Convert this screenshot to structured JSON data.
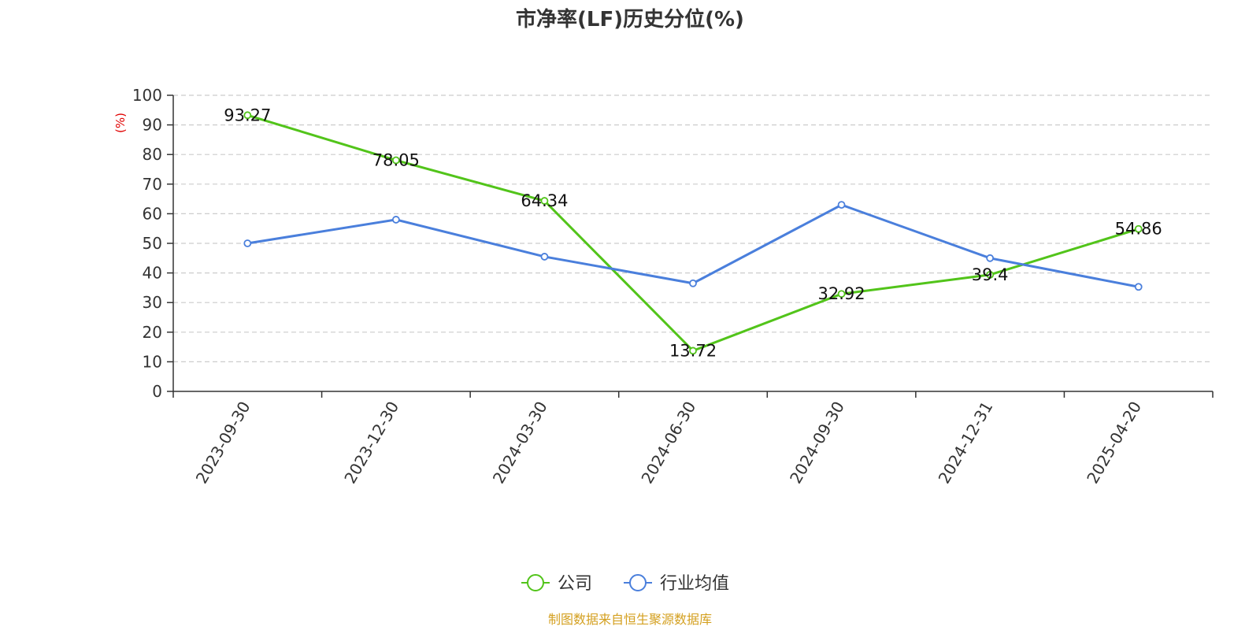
{
  "chart_data": {
    "type": "line",
    "title": "市净率(LF)历史分位(%)",
    "ylabel": "(%)",
    "categories": [
      "2023-09-30",
      "2023-12-30",
      "2024-03-30",
      "2024-06-30",
      "2024-09-30",
      "2024-12-31",
      "2025-04-20"
    ],
    "ylim": [
      0,
      100
    ],
    "yticks": [
      0,
      10,
      20,
      30,
      40,
      50,
      60,
      70,
      80,
      90,
      100
    ],
    "grid": true,
    "legend_position": "bottom",
    "series": [
      {
        "name": "公司",
        "color": "#52c41a",
        "values": [
          93.27,
          78.05,
          64.34,
          13.72,
          32.92,
          39.4,
          54.86
        ],
        "labels": [
          "93.27",
          "78.05",
          "64.34",
          "13.72",
          "32.92",
          "39.4",
          "54.86"
        ]
      },
      {
        "name": "行业均值",
        "color": "#4a7fdc",
        "values": [
          50.0,
          58.0,
          45.5,
          36.5,
          63.0,
          45.0,
          35.3
        ]
      }
    ]
  },
  "footer": {
    "source": "制图数据来自恒生聚源数据库",
    "source_color": "#d4a020"
  },
  "colors": {
    "axis": "#333333",
    "grid": "#cccccc",
    "unit": "#e00000"
  }
}
